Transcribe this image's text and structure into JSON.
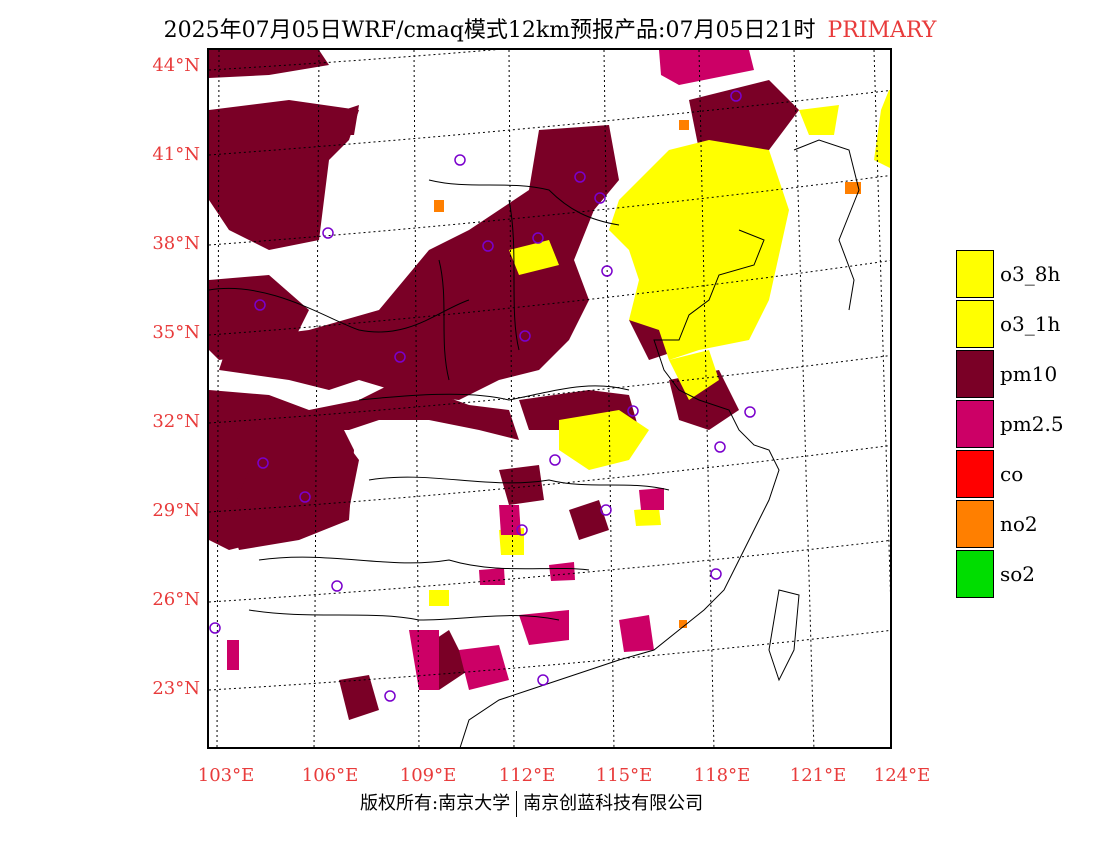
{
  "title": {
    "main": "2025年07月05日WRF/cmaq模式12km预报产品:07月05日21时",
    "tag": "PRIMARY",
    "tag_color": "#e83b3b"
  },
  "map": {
    "lat_labels": [
      "44°N",
      "41°N",
      "38°N",
      "35°N",
      "32°N",
      "29°N",
      "26°N",
      "23°N"
    ],
    "lon_labels": [
      "103°E",
      "106°E",
      "109°E",
      "112°E",
      "115°E",
      "118°E",
      "121°E",
      "124°E"
    ],
    "pollutant_colors": {
      "o3": "#ffff00",
      "pm10": "#7a0026",
      "pm25": "#cc0066",
      "no2": "#ff7f00"
    }
  },
  "legend": [
    {
      "label": "o3_8h",
      "color": "#ffff00"
    },
    {
      "label": "o3_1h",
      "color": "#ffff00"
    },
    {
      "label": "pm10",
      "color": "#7a0026"
    },
    {
      "label": "pm2.5",
      "color": "#cc0066"
    },
    {
      "label": "co",
      "color": "#ff0000"
    },
    {
      "label": "no2",
      "color": "#ff7f00"
    },
    {
      "label": "so2",
      "color": "#00dd00"
    }
  ],
  "footer": {
    "left": "版权所有:南京大学",
    "right": "南京创蓝科技有限公司"
  }
}
